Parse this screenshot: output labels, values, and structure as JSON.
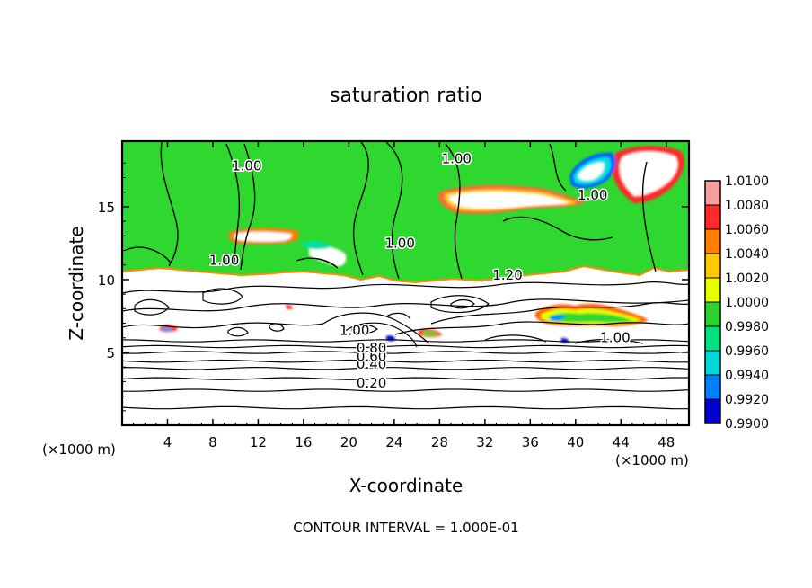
{
  "chart_data": {
    "type": "heatmap",
    "title": "saturation ratio",
    "xlabel": "X-coordinate",
    "ylabel": "Z-coordinate",
    "x_unit": "(×1000 m)",
    "y_unit": "(×1000 m)",
    "xlim": [
      0,
      50
    ],
    "ylim": [
      0,
      19.5
    ],
    "x_ticks": [
      4,
      8,
      12,
      16,
      20,
      24,
      28,
      32,
      36,
      40,
      44,
      48
    ],
    "y_ticks": [
      5,
      10,
      15
    ],
    "footnote": "CONTOUR INTERVAL = 1.000E-01",
    "colorbar": {
      "labels": [
        "1.0100",
        "1.0080",
        "1.0060",
        "1.0040",
        "1.0020",
        "1.0000",
        "0.9980",
        "0.9960",
        "0.9940",
        "0.9920",
        "0.9900"
      ],
      "colors": [
        "#f4a0a0",
        "#ff2a2a",
        "#ff8000",
        "#ffc800",
        "#e8ff00",
        "#30d030",
        "#00e080",
        "#00d8d8",
        "#0080ff",
        "#0000d0",
        "#500090"
      ]
    },
    "cloud_layer": {
      "z_bottom": 10.5,
      "z_top": 19.5,
      "dominant_value": 1.0
    },
    "contour_labels": [
      {
        "text": "0.20",
        "x": 22,
        "z": 2.6
      },
      {
        "text": "0.40",
        "x": 22,
        "z": 3.9
      },
      {
        "text": "0.60",
        "x": 22,
        "z": 4.4
      },
      {
        "text": "0.80",
        "x": 22,
        "z": 5.0
      },
      {
        "text": "1.00",
        "x": 20.5,
        "z": 6.2
      },
      {
        "text": "1.20",
        "x": 34,
        "z": 10.0
      },
      {
        "text": "1.00",
        "x": 9,
        "z": 11.0
      },
      {
        "text": "1.00",
        "x": 24.5,
        "z": 12.2
      },
      {
        "text": "1.00",
        "x": 11,
        "z": 17.5
      },
      {
        "text": "1.00",
        "x": 29.5,
        "z": 18.0
      },
      {
        "text": "1.00",
        "x": 41.5,
        "z": 15.5
      },
      {
        "text": "1.00",
        "x": 43.5,
        "z": 5.7
      }
    ],
    "horizontal_contours_z": [
      1.2,
      2.4,
      3.2,
      3.9,
      4.4,
      5.0,
      5.4,
      5.8
    ],
    "grid": false
  }
}
